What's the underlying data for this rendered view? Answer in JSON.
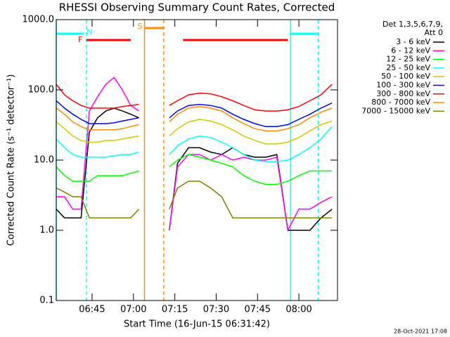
{
  "chart_data": {
    "type": "line",
    "title": "RHESSI Observing Summary Count Rates, Corrected",
    "x_label": "Start Time (16-Jun-15 06:31:42)",
    "y_label": "Corrected Count Rate (s⁻¹ detector⁻¹)",
    "legend_header": [
      "Det 1,3,5,6,7,9,",
      "Att 0"
    ],
    "footer": "28-Oct-2021 17:08",
    "log_y": true,
    "xlim": [
      "06:32",
      "08:14"
    ],
    "xticks": [
      "06:45",
      "07:00",
      "07:15",
      "07:30",
      "07:45",
      "08:00"
    ],
    "ylim": [
      0.1,
      1000
    ],
    "yticks": [
      0.1,
      {
        "value": 1,
        "label": "1.0"
      },
      {
        "value": 10,
        "label": "10.0"
      },
      {
        "value": 100,
        "label": "100.0"
      },
      {
        "value": 1000,
        "label": "1000.0"
      }
    ],
    "x": [
      "06:32",
      "06:35",
      "06:38",
      "06:41",
      "06:44",
      "06:47",
      "06:50",
      "06:53",
      "06:56",
      "06:59",
      "07:02",
      "07:05",
      "07:13",
      "07:16",
      "07:20",
      "07:24",
      "07:28",
      "07:32",
      "07:36",
      "07:40",
      "07:44",
      "07:48",
      "07:52",
      "07:56",
      "08:00",
      "08:04",
      "08:08",
      "08:12"
    ],
    "series": [
      {
        "name": "3 - 6 keV",
        "color": "#000000",
        "values": [
          2,
          1.5,
          1.5,
          1.5,
          25,
          40,
          50,
          55,
          50,
          45,
          40,
          null,
          1,
          9,
          15,
          15,
          13,
          12,
          15,
          12,
          11,
          11,
          12,
          1,
          1,
          1,
          1.5,
          2
        ]
      },
      {
        "name": "6 - 12 keV",
        "color": "#ff00ff",
        "values": [
          3,
          3,
          2,
          2,
          50,
          80,
          120,
          150,
          100,
          60,
          50,
          null,
          1,
          8,
          12,
          12,
          10,
          12,
          10,
          11,
          10,
          10,
          11,
          1,
          2,
          2,
          2.5,
          3
        ]
      },
      {
        "name": "12 - 25 keV",
        "color": "#00ff00",
        "values": [
          8,
          6,
          5,
          5,
          5,
          6,
          6,
          6,
          6,
          6.5,
          7,
          null,
          8,
          10,
          12,
          11,
          10,
          9,
          8,
          6,
          5,
          4.5,
          4.5,
          5,
          6,
          7,
          7,
          7
        ]
      },
      {
        "name": "25 - 50 keV",
        "color": "#00ffff",
        "values": [
          20,
          15,
          12,
          11,
          11,
          11,
          11,
          11.5,
          12,
          12,
          13,
          null,
          12,
          16,
          20,
          22,
          21,
          18,
          15,
          12,
          10,
          9.5,
          9.5,
          10,
          12,
          15,
          20,
          30
        ]
      },
      {
        "name": "50 - 100 keV",
        "color": "#d4c800",
        "values": [
          35,
          28,
          22,
          19,
          18,
          18,
          19,
          19,
          20,
          21,
          22,
          null,
          22,
          28,
          35,
          38,
          36,
          32,
          27,
          22,
          19,
          17,
          17,
          18,
          21,
          26,
          32,
          36
        ]
      },
      {
        "name": "100 - 300 keV",
        "color": "#0000ff",
        "values": [
          70,
          55,
          45,
          38,
          33,
          33,
          33,
          34,
          36,
          38,
          40,
          null,
          40,
          50,
          60,
          62,
          60,
          55,
          45,
          38,
          33,
          30,
          30,
          32,
          38,
          45,
          55,
          65
        ]
      },
      {
        "name": "300 - 800 keV",
        "color": "#ff0000",
        "values": [
          120,
          85,
          70,
          60,
          55,
          55,
          55,
          55,
          58,
          60,
          62,
          null,
          60,
          70,
          85,
          90,
          88,
          80,
          70,
          60,
          52,
          50,
          50,
          52,
          58,
          70,
          85,
          120
        ]
      },
      {
        "name": "800 - 7000 keV",
        "color": "#ff8c00",
        "values": [
          55,
          45,
          35,
          30,
          27,
          27,
          27,
          27,
          28,
          30,
          32,
          null,
          35,
          45,
          55,
          58,
          55,
          50,
          40,
          33,
          28,
          26,
          26,
          28,
          32,
          40,
          48,
          55
        ]
      },
      {
        "name": "7000 - 15000 keV",
        "color": "#808000",
        "values": [
          4,
          3.5,
          3,
          3,
          1.5,
          1.5,
          1.5,
          1.5,
          1.5,
          1.5,
          2,
          null,
          2,
          4,
          5,
          5,
          4,
          3,
          1.5,
          1.5,
          1.5,
          1.5,
          1.5,
          1.5,
          1.5,
          1.5,
          1.5,
          1.5
        ]
      }
    ],
    "flags": [
      {
        "label": "N",
        "color": "#00ffff",
        "start": "06:32",
        "end": "06:42"
      },
      {
        "label": "N",
        "color": "#00ffff",
        "start": "07:57",
        "end": "08:07"
      },
      {
        "label": "F",
        "color": "#ff0000",
        "start": "06:43",
        "end": "06:59"
      },
      {
        "label": "F",
        "color": "#ff0000",
        "start": "07:18",
        "end": "07:56"
      },
      {
        "label": "S",
        "color": "#ff8c00",
        "start": "07:04",
        "end": "07:11"
      }
    ],
    "markers": [
      {
        "x": "06:32",
        "color": "#00ffff",
        "style": "solid"
      },
      {
        "x": "06:43",
        "color": "#00ffff",
        "style": "dashed"
      },
      {
        "x": "07:04",
        "color": "#ff8c00",
        "style": "solid"
      },
      {
        "x": "07:11",
        "color": "#ff8c00",
        "style": "dashed"
      },
      {
        "x": "07:57",
        "color": "#00ffff",
        "style": "solid"
      },
      {
        "x": "08:07",
        "color": "#00ffff",
        "style": "dashed"
      }
    ]
  }
}
